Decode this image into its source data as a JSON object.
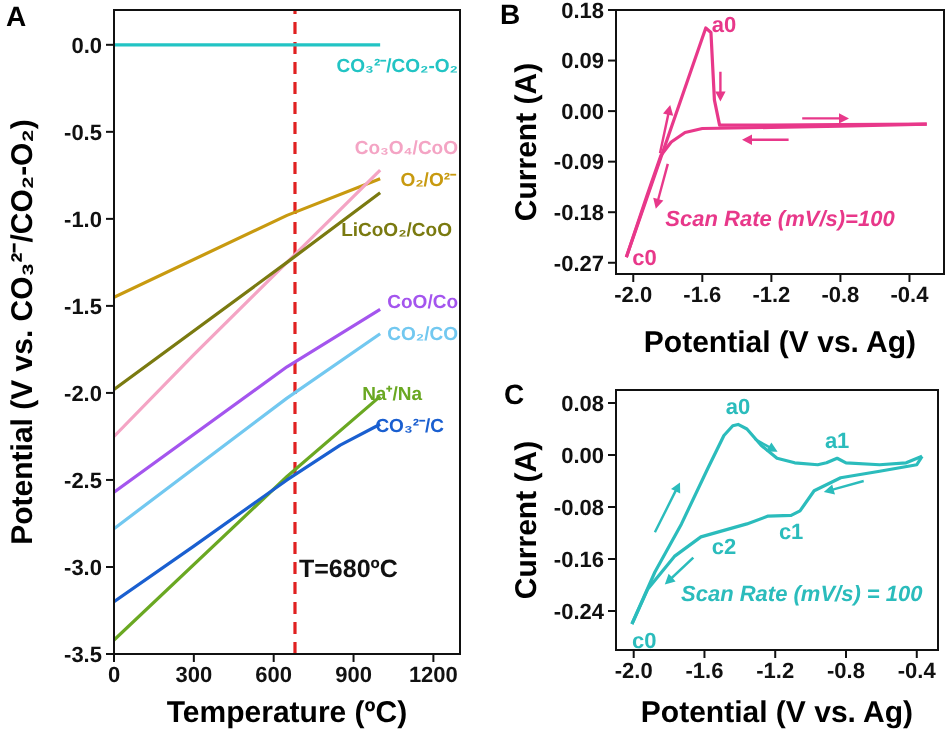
{
  "chart_data": [
    {
      "type": "line",
      "title": "A",
      "xlabel": "Temperature (ºC)",
      "ylabel": "Potential (V vs. CO₃²⁻/CO₂-O₂)",
      "xlim": [
        0,
        1300
      ],
      "xticks": [
        0,
        300,
        600,
        900,
        1200
      ],
      "ylim": [
        -3.5,
        0.2
      ],
      "yticks": [
        -3.5,
        {
          "value": -3,
          "label": "-3.0"
        },
        -2.5,
        {
          "value": -2,
          "label": "-2.0"
        },
        -1.5,
        {
          "value": -1,
          "label": "-1.0"
        },
        -0.5,
        {
          "value": 0,
          "label": "0.0"
        }
      ],
      "grid": false,
      "legend": false,
      "series": [
        {
          "name": "CO₃²⁻/CO₂-O₂",
          "color": "#22c4c4",
          "x": [
            0,
            650,
            1000
          ],
          "values": [
            0,
            0,
            0
          ]
        },
        {
          "name": "O₂/O²⁻",
          "color": "#c89a10",
          "x": [
            0,
            650,
            1000
          ],
          "values": [
            -1.45,
            -0.98,
            -0.77
          ]
        },
        {
          "name": "Co₃O₄/CoO",
          "color": "#f4a4c4",
          "x": [
            0,
            300,
            650,
            1000
          ],
          "values": [
            -2.25,
            -1.78,
            -1.25,
            -0.72
          ]
        },
        {
          "name": "LiCoO₂/CoO",
          "color": "#7a7a10",
          "x": [
            0,
            650,
            1000
          ],
          "values": [
            -1.98,
            -1.25,
            -0.85
          ]
        },
        {
          "name": "CoO/Co",
          "color": "#a455ee",
          "x": [
            0,
            650,
            1000
          ],
          "values": [
            -2.57,
            -1.85,
            -1.52
          ]
        },
        {
          "name": "CO₂/CO",
          "color": "#72c8f0",
          "x": [
            0,
            650,
            1000
          ],
          "values": [
            -2.78,
            -2.03,
            -1.66
          ]
        },
        {
          "name": "Na⁺/Na",
          "color": "#6aa822",
          "x": [
            0,
            650,
            1000
          ],
          "values": [
            -3.42,
            -2.48,
            -2.02
          ]
        },
        {
          "name": "CO₃²⁻/C",
          "color": "#1a5fd0",
          "x": [
            0,
            300,
            650,
            850,
            1000
          ],
          "values": [
            -3.2,
            -2.88,
            -2.5,
            -2.3,
            -2.18
          ]
        }
      ],
      "ref_lines": [
        {
          "axis": "x",
          "value": 680,
          "label": "T=680ºC",
          "color": "#e02020",
          "line_style": "dashed"
        }
      ]
    },
    {
      "type": "line",
      "title": "B",
      "xlabel": "Potential (V vs. Ag)",
      "ylabel": "Current (A)",
      "xlim": [
        -2.1,
        -0.2
      ],
      "xticks": [
        {
          "value": -2,
          "label": "-2.0"
        },
        -1.6,
        -1.2,
        -0.8,
        -0.4
      ],
      "ylim": [
        -0.29,
        0.18
      ],
      "yticks": [
        -0.27,
        -0.18,
        -0.09,
        {
          "value": 0,
          "label": "0.00"
        },
        0.09,
        0.18
      ],
      "grid": false,
      "legend": false,
      "series": [
        {
          "color": "#e8388a",
          "x": [
            -2.04,
            -1.58,
            -1.55,
            -1.53,
            -1.5,
            -1.2,
            -0.8,
            -0.3
          ],
          "values": [
            -0.26,
            0.148,
            0.14,
            0.02,
            -0.025,
            -0.025,
            -0.024,
            -0.023
          ]
        },
        {
          "color": "#e8388a",
          "x": [
            -0.3,
            -0.8,
            -1.2,
            -1.6,
            -1.7,
            -1.78,
            -1.84,
            -1.92,
            -2.04
          ],
          "values": [
            -0.023,
            -0.027,
            -0.029,
            -0.031,
            -0.038,
            -0.055,
            -0.079,
            -0.15,
            -0.26
          ]
        }
      ],
      "annotations": [
        {
          "text": "a0",
          "x": -1.58,
          "y": 0.148
        },
        {
          "text": "c0",
          "x": -2.04,
          "y": -0.26
        },
        "Scan Rate (mV/s)=100"
      ]
    },
    {
      "type": "line",
      "title": "C",
      "xlabel": "Potential (V vs. Ag)",
      "ylabel": "Current (A)",
      "xlim": [
        -2.1,
        -0.28
      ],
      "xticks": [
        {
          "value": -2,
          "label": "-2.0"
        },
        -1.6,
        -1.2,
        -0.8,
        -0.4
      ],
      "ylim": [
        -0.3,
        0.1
      ],
      "yticks": [
        -0.24,
        -0.16,
        -0.08,
        {
          "value": 0,
          "label": "0.00"
        },
        0.08
      ],
      "grid": false,
      "legend": false,
      "series": [
        {
          "color": "#2bbcbc",
          "x": [
            -2.01,
            -1.88,
            -1.73,
            -1.58,
            -1.49,
            -1.44,
            -1.41,
            -1.36,
            -1.28,
            -1.19,
            -1.09,
            -0.96,
            -0.91,
            -0.85,
            -0.8,
            -0.61,
            -0.46,
            -0.37
          ],
          "values": [
            -0.26,
            -0.18,
            -0.106,
            -0.02,
            0.03,
            0.045,
            0.047,
            0.04,
            0.015,
            -0.005,
            -0.012,
            -0.015,
            -0.012,
            -0.005,
            -0.012,
            -0.015,
            -0.012,
            -0.002
          ]
        },
        {
          "color": "#2bbcbc",
          "x": [
            -0.37,
            -0.4,
            -0.61,
            -0.83,
            -0.98,
            -1.06,
            -1.11,
            -1.24,
            -1.36,
            -1.49,
            -1.62,
            -1.77,
            -1.92,
            -2.01
          ],
          "values": [
            -0.002,
            -0.015,
            -0.025,
            -0.035,
            -0.055,
            -0.086,
            -0.093,
            -0.094,
            -0.106,
            -0.116,
            -0.126,
            -0.156,
            -0.206,
            -0.26
          ]
        }
      ],
      "annotations": [
        {
          "text": "a0",
          "x": -1.41,
          "y": 0.047
        },
        {
          "text": "a1",
          "x": -0.85,
          "y": -0.005
        },
        {
          "text": "c1",
          "x": -1.11,
          "y": -0.093
        },
        {
          "text": "c2",
          "x": -1.49,
          "y": -0.116
        },
        {
          "text": "c0",
          "x": -2.01,
          "y": -0.26
        },
        "Scan Rate (mV/s) = 100"
      ]
    }
  ]
}
